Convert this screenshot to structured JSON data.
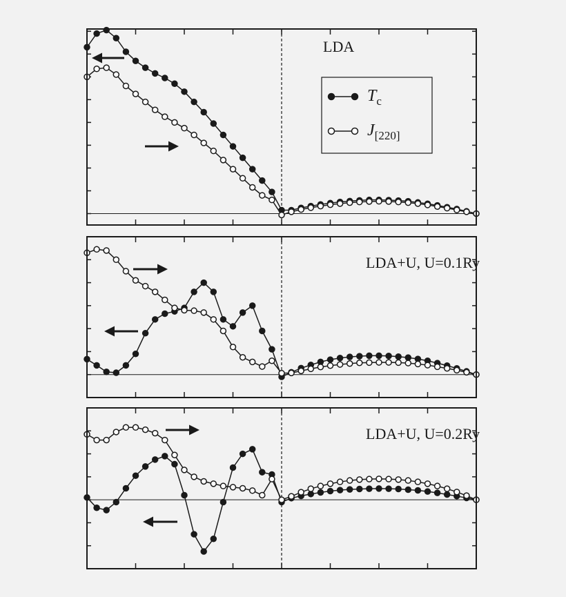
{
  "chart_data": [
    {
      "type": "line",
      "annotation": "LDA",
      "xlim": [
        0,
        8
      ],
      "xticks": [
        0,
        1,
        2,
        3,
        4,
        5,
        6,
        7,
        8
      ],
      "ylim": [
        -0.5,
        8.1
      ],
      "yticks": [
        0,
        1,
        2,
        3,
        4,
        5,
        6,
        7,
        8
      ],
      "vline_x": 4,
      "legend": "upper-right",
      "x": [
        0,
        0.2,
        0.4,
        0.6,
        0.8,
        1,
        1.2,
        1.4,
        1.6,
        1.8,
        2,
        2.2,
        2.4,
        2.6,
        2.8,
        3,
        3.2,
        3.4,
        3.6,
        3.8,
        4,
        4.2,
        4.4,
        4.6,
        4.8,
        5,
        5.2,
        5.4,
        5.6,
        5.8,
        6,
        6.2,
        6.4,
        6.6,
        6.8,
        7,
        7.2,
        7.4,
        7.6,
        7.8,
        8
      ],
      "series": [
        {
          "name": "T",
          "name_sub": "c",
          "color": "#1a1a1a",
          "marker": "filled",
          "values": [
            7.3,
            7.9,
            8.05,
            7.7,
            7.1,
            6.7,
            6.4,
            6.15,
            5.95,
            5.7,
            5.35,
            4.9,
            4.45,
            3.95,
            3.45,
            2.95,
            2.45,
            1.95,
            1.45,
            0.95,
            0.15,
            0.15,
            0.25,
            0.33,
            0.4,
            0.46,
            0.51,
            0.55,
            0.58,
            0.6,
            0.6,
            0.59,
            0.57,
            0.54,
            0.49,
            0.43,
            0.36,
            0.28,
            0.2,
            0.1,
            0.0
          ]
        },
        {
          "name": "J",
          "name_sub": "[220]",
          "color": "#1a1a1a",
          "marker": "open",
          "values": [
            6.0,
            6.35,
            6.4,
            6.1,
            5.6,
            5.25,
            4.9,
            4.55,
            4.25,
            4.0,
            3.75,
            3.45,
            3.1,
            2.75,
            2.35,
            1.95,
            1.55,
            1.15,
            0.8,
            0.6,
            -0.06,
            0.08,
            0.18,
            0.26,
            0.33,
            0.39,
            0.44,
            0.48,
            0.51,
            0.53,
            0.54,
            0.53,
            0.51,
            0.48,
            0.44,
            0.38,
            0.31,
            0.24,
            0.16,
            0.08,
            0.0
          ]
        }
      ]
    },
    {
      "type": "line",
      "annotation": "LDA+U, U=0.1Ry",
      "xlim": [
        0,
        8
      ],
      "xticks": [
        0,
        1,
        2,
        3,
        4,
        5,
        6,
        7,
        8
      ],
      "ylim": [
        -1,
        6
      ],
      "yticks": [
        0,
        1,
        2,
        3,
        4,
        5
      ],
      "vline_x": 4,
      "x": [
        0,
        0.2,
        0.4,
        0.6,
        0.8,
        1,
        1.2,
        1.4,
        1.6,
        1.8,
        2,
        2.2,
        2.4,
        2.6,
        2.8,
        3,
        3.2,
        3.4,
        3.6,
        3.8,
        4,
        4.2,
        4.4,
        4.6,
        4.8,
        5,
        5.2,
        5.4,
        5.6,
        5.8,
        6,
        6.2,
        6.4,
        6.6,
        6.8,
        7,
        7.2,
        7.4,
        7.6,
        7.8,
        8
      ],
      "series": [
        {
          "color": "#1a1a1a",
          "marker": "filled",
          "values": [
            0.67,
            0.4,
            0.12,
            0.08,
            0.4,
            0.9,
            1.8,
            2.4,
            2.65,
            2.75,
            2.9,
            3.6,
            4.0,
            3.6,
            2.4,
            2.1,
            2.7,
            3.0,
            1.9,
            1.1,
            -0.1,
            0.1,
            0.28,
            0.42,
            0.55,
            0.65,
            0.72,
            0.77,
            0.8,
            0.82,
            0.82,
            0.81,
            0.78,
            0.74,
            0.68,
            0.6,
            0.5,
            0.39,
            0.27,
            0.14,
            0.0
          ]
        },
        {
          "color": "#1a1a1a",
          "marker": "open",
          "values": [
            5.3,
            5.45,
            5.4,
            5.0,
            4.5,
            4.1,
            3.85,
            3.6,
            3.25,
            2.9,
            2.8,
            2.78,
            2.7,
            2.4,
            1.9,
            1.2,
            0.75,
            0.55,
            0.35,
            0.6,
            0.06,
            0.07,
            0.16,
            0.25,
            0.33,
            0.39,
            0.44,
            0.48,
            0.51,
            0.52,
            0.53,
            0.53,
            0.52,
            0.5,
            0.46,
            0.41,
            0.34,
            0.27,
            0.19,
            0.1,
            0.0
          ]
        }
      ]
    },
    {
      "type": "line",
      "annotation": "LDA+U, U=0.2Ry",
      "xlim": [
        0,
        8
      ],
      "xticks": [
        0,
        1,
        2,
        3,
        4,
        5,
        6,
        7,
        8
      ],
      "ylim": [
        -3,
        4
      ],
      "yticks": [
        -2,
        -1,
        0,
        1,
        2,
        3
      ],
      "vline_x": 4,
      "x": [
        0,
        0.2,
        0.4,
        0.6,
        0.8,
        1,
        1.2,
        1.4,
        1.6,
        1.8,
        2,
        2.2,
        2.4,
        2.6,
        2.8,
        3,
        3.2,
        3.4,
        3.6,
        3.8,
        4,
        4.2,
        4.4,
        4.6,
        4.8,
        5,
        5.2,
        5.4,
        5.6,
        5.8,
        6,
        6.2,
        6.4,
        6.6,
        6.8,
        7,
        7.2,
        7.4,
        7.6,
        7.8,
        8
      ],
      "series": [
        {
          "color": "#1a1a1a",
          "marker": "filled",
          "values": [
            0.1,
            -0.35,
            -0.45,
            -0.1,
            0.5,
            1.05,
            1.45,
            1.75,
            1.9,
            1.55,
            0.2,
            -1.5,
            -2.25,
            -1.7,
            -0.1,
            1.4,
            2.0,
            2.2,
            1.2,
            1.1,
            -0.1,
            0.07,
            0.17,
            0.25,
            0.32,
            0.38,
            0.42,
            0.45,
            0.47,
            0.48,
            0.49,
            0.48,
            0.47,
            0.44,
            0.41,
            0.36,
            0.3,
            0.23,
            0.16,
            0.08,
            0.0
          ]
        },
        {
          "color": "#1a1a1a",
          "marker": "open",
          "values": [
            2.85,
            2.6,
            2.6,
            2.95,
            3.15,
            3.15,
            3.05,
            2.9,
            2.6,
            1.95,
            1.3,
            1.0,
            0.8,
            0.7,
            0.6,
            0.55,
            0.5,
            0.4,
            0.2,
            0.9,
            0.0,
            0.15,
            0.33,
            0.48,
            0.6,
            0.7,
            0.78,
            0.84,
            0.88,
            0.9,
            0.91,
            0.9,
            0.88,
            0.84,
            0.78,
            0.7,
            0.6,
            0.48,
            0.34,
            0.18,
            0.0
          ]
        }
      ]
    }
  ]
}
